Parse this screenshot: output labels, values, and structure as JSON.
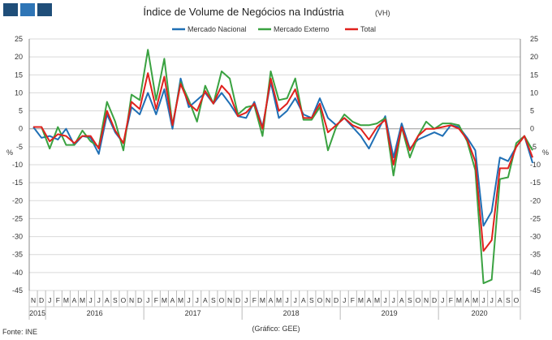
{
  "logo": {
    "colors": [
      "#1f4e79",
      "#2e75b6",
      "#1f4e79"
    ]
  },
  "chart_data": {
    "type": "line",
    "title": "Índice de Volume de Negócios na Indústria",
    "title_suffix": "(VH)",
    "ylabel_left": "%",
    "ylabel_right": "%",
    "ylim": [
      -45,
      25
    ],
    "yticks": [
      25,
      20,
      15,
      10,
      5,
      0,
      -5,
      -10,
      -15,
      -20,
      -25,
      -30,
      -35,
      -40,
      -45
    ],
    "grid": "horizontal",
    "legend_position": "top",
    "month_labels": [
      "N",
      "D",
      "J",
      "F",
      "M",
      "A",
      "M",
      "J",
      "J",
      "A",
      "S",
      "O",
      "N",
      "D",
      "J",
      "F",
      "M",
      "A",
      "M",
      "J",
      "J",
      "A",
      "S",
      "O",
      "N",
      "D",
      "J",
      "F",
      "M",
      "A",
      "M",
      "J",
      "J",
      "A",
      "S",
      "O",
      "N",
      "D",
      "J",
      "F",
      "M",
      "A",
      "M",
      "J",
      "J",
      "A",
      "S",
      "O",
      "N",
      "D",
      "J",
      "F",
      "M",
      "A",
      "M",
      "J",
      "J",
      "A",
      "S",
      "O"
    ],
    "year_labels": [
      "2015",
      "2016",
      "2017",
      "2018",
      "2019",
      "2020"
    ],
    "series": [
      {
        "name": "Mercado Nacional",
        "color": "#1f6fb5",
        "values": [
          0.5,
          -2.5,
          -2,
          -3,
          0,
          -4.5,
          -2,
          -2.5,
          -7,
          4,
          -1,
          -4,
          6,
          4,
          10,
          4,
          11,
          0,
          14,
          6,
          8,
          10,
          7,
          10,
          7,
          3.5,
          3,
          7.5,
          0.5,
          13,
          3,
          5,
          8.5,
          4,
          3,
          8.5,
          3,
          1,
          3,
          0.5,
          -2,
          -5.5,
          -1,
          3.5,
          -8,
          1.5,
          -5.5,
          -3,
          -2,
          -1,
          -2,
          1,
          0.5,
          -2.5,
          -6,
          -27,
          -23,
          -8,
          -9,
          -5,
          -2,
          -9.5
        ]
      },
      {
        "name": "Mercado Externo",
        "color": "#3aa241",
        "values": [
          0.5,
          0.5,
          -5.5,
          0.5,
          -4.5,
          -4.5,
          -0.5,
          -3.5,
          -5,
          7.5,
          2,
          -6,
          9.5,
          8,
          22,
          8,
          19.5,
          1,
          13,
          8,
          2,
          12,
          7,
          16,
          14,
          4,
          6,
          6.5,
          -2,
          16,
          8,
          8.5,
          14,
          2.5,
          2.5,
          6,
          -6,
          0.5,
          4,
          2,
          1,
          1,
          1.5,
          3,
          -13,
          0.5,
          -8,
          -2,
          2,
          0,
          1.5,
          1.5,
          1,
          -3.5,
          -11.5,
          -43,
          -42,
          -14,
          -13.5,
          -4,
          -2,
          -6
        ]
      },
      {
        "name": "Total",
        "color": "#e0211d",
        "values": [
          0.5,
          0.5,
          -3.5,
          -1.5,
          -2,
          -4,
          -2,
          -2,
          -5.5,
          5,
          -0.5,
          -4,
          7.5,
          5.5,
          15.5,
          5.5,
          14.5,
          1,
          12.5,
          7,
          5,
          10.5,
          7,
          12,
          9.5,
          3.5,
          4.5,
          7,
          0,
          14,
          5,
          7,
          11,
          3,
          3,
          7,
          -1,
          1,
          3,
          1,
          0,
          -3,
          0.5,
          2.5,
          -10,
          0.5,
          -6,
          -2,
          0,
          0,
          0.5,
          1,
          0,
          -3,
          -9,
          -34,
          -31,
          -11,
          -11,
          -5,
          -2,
          -8
        ]
      }
    ]
  },
  "footer": {
    "source": "Fonte: INE",
    "credit": "(Gráfico: GEE)"
  }
}
